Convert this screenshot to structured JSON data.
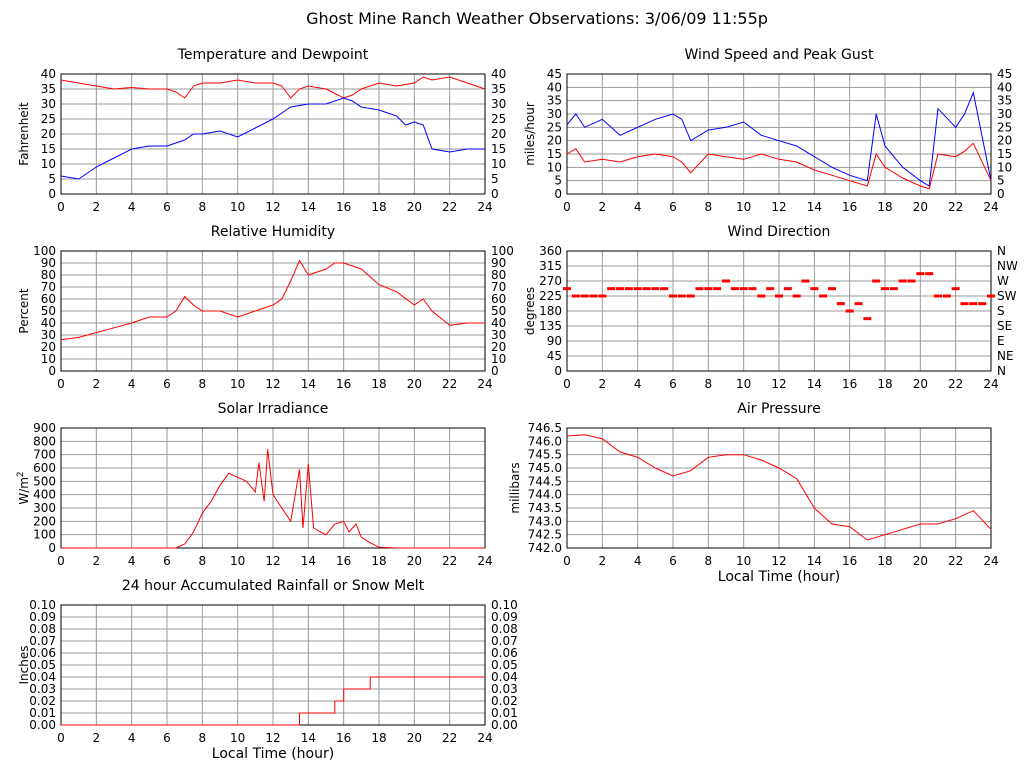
{
  "title": "Ghost Mine Ranch Weather Observations: 3/06/09 11:55p",
  "chart_data": [
    {
      "id": "temp",
      "type": "line",
      "title": "Temperature and Dewpoint",
      "ylabel": "Fahrenheit",
      "xlabel": "",
      "xlim": [
        0,
        24
      ],
      "ylim": [
        0,
        40
      ],
      "xticks": [
        0,
        2,
        4,
        6,
        8,
        10,
        12,
        14,
        16,
        18,
        20,
        22,
        24
      ],
      "yticks": [
        0,
        5,
        10,
        15,
        20,
        25,
        30,
        35,
        40
      ],
      "yticklabels_right": [
        "0",
        "5",
        "10",
        "15",
        "20",
        "25",
        "30",
        "35",
        "40"
      ],
      "grid": true,
      "series": [
        {
          "color": "#ff0000",
          "x": [
            0,
            1,
            2,
            3,
            4,
            5,
            6,
            6.5,
            7,
            7.5,
            8,
            9,
            10,
            11,
            12,
            12.5,
            13,
            13.5,
            14,
            15,
            16,
            16.5,
            17,
            18,
            19,
            20,
            20.5,
            21,
            22,
            23,
            24
          ],
          "y": [
            38,
            37,
            36,
            35,
            35.5,
            35,
            35,
            34,
            32,
            36,
            37,
            37,
            38,
            37,
            37,
            36,
            32,
            35,
            36,
            35,
            32,
            33,
            35,
            37,
            36,
            37,
            39,
            38,
            39,
            37,
            35
          ]
        },
        {
          "color": "#0000ff",
          "x": [
            0,
            1,
            2,
            3,
            4,
            5,
            6,
            7,
            7.5,
            8,
            9,
            10,
            11,
            12,
            13,
            14,
            15,
            16,
            16.5,
            17,
            18,
            19,
            19.5,
            20,
            20.5,
            21,
            22,
            23,
            24
          ],
          "y": [
            6,
            5,
            9,
            12,
            15,
            16,
            16,
            18,
            20,
            20,
            21,
            19,
            22,
            25,
            29,
            30,
            30,
            32,
            31,
            29,
            28,
            26,
            23,
            24,
            23,
            15,
            14,
            15,
            15
          ]
        }
      ]
    },
    {
      "id": "wind",
      "type": "line",
      "title": "Wind Speed and Peak Gust",
      "ylabel": "miles/hour",
      "xlabel": "",
      "xlim": [
        0,
        24
      ],
      "ylim": [
        0,
        45
      ],
      "xticks": [
        0,
        2,
        4,
        6,
        8,
        10,
        12,
        14,
        16,
        18,
        20,
        22,
        24
      ],
      "yticks": [
        0,
        5,
        10,
        15,
        20,
        25,
        30,
        35,
        40,
        45
      ],
      "yticklabels_right": [
        "0",
        "5",
        "10",
        "15",
        "20",
        "25",
        "30",
        "35",
        "40",
        "45"
      ],
      "grid": true,
      "series": [
        {
          "color": "#0000ff",
          "x": [
            0,
            0.5,
            1,
            2,
            3,
            4,
            5,
            6,
            6.5,
            7,
            8,
            9,
            10,
            11,
            12,
            13,
            14,
            15,
            16,
            17,
            17.5,
            18,
            19,
            20,
            20.5,
            21,
            22,
            22.5,
            23,
            24
          ],
          "y": [
            26,
            30,
            25,
            28,
            22,
            25,
            28,
            30,
            28,
            20,
            24,
            25,
            27,
            22,
            20,
            18,
            14,
            10,
            7,
            5,
            30,
            18,
            10,
            5,
            3,
            32,
            25,
            30,
            38,
            5
          ]
        },
        {
          "color": "#ff0000",
          "x": [
            0,
            0.5,
            1,
            2,
            3,
            4,
            5,
            6,
            6.5,
            7,
            8,
            9,
            10,
            11,
            12,
            13,
            14,
            15,
            16,
            17,
            17.5,
            18,
            19,
            20,
            20.5,
            21,
            22,
            22.5,
            23,
            24
          ],
          "y": [
            15,
            17,
            12,
            13,
            12,
            14,
            15,
            14,
            12,
            8,
            15,
            14,
            13,
            15,
            13,
            12,
            9,
            7,
            5,
            3,
            15,
            10,
            6,
            3,
            2,
            15,
            14,
            16,
            19,
            5
          ]
        }
      ]
    },
    {
      "id": "rh",
      "type": "line",
      "title": "Relative Humidity",
      "ylabel": "Percent",
      "xlabel": "",
      "xlim": [
        0,
        24
      ],
      "ylim": [
        0,
        100
      ],
      "xticks": [
        0,
        2,
        4,
        6,
        8,
        10,
        12,
        14,
        16,
        18,
        20,
        22,
        24
      ],
      "yticks": [
        0,
        10,
        20,
        30,
        40,
        50,
        60,
        70,
        80,
        90,
        100
      ],
      "yticklabels_right": [
        "0",
        "10",
        "20",
        "30",
        "40",
        "50",
        "60",
        "70",
        "80",
        "90",
        "100"
      ],
      "grid": true,
      "series": [
        {
          "color": "#ff0000",
          "x": [
            0,
            1,
            2,
            3,
            4,
            5,
            6,
            6.5,
            7,
            7.5,
            8,
            9,
            10,
            11,
            12,
            12.5,
            13,
            13.5,
            14,
            15,
            15.5,
            16,
            17,
            18,
            19,
            20,
            20.5,
            21,
            22,
            23,
            24
          ],
          "y": [
            26,
            28,
            32,
            36,
            40,
            45,
            45,
            50,
            62,
            55,
            50,
            50,
            45,
            50,
            55,
            60,
            75,
            92,
            80,
            85,
            90,
            90,
            85,
            72,
            66,
            55,
            60,
            50,
            38,
            40,
            40
          ]
        }
      ]
    },
    {
      "id": "winddir",
      "type": "scatter",
      "title": "Wind Direction",
      "ylabel": "degrees",
      "xlabel": "",
      "xlim": [
        0,
        24
      ],
      "ylim": [
        0,
        360
      ],
      "xticks": [
        0,
        2,
        4,
        6,
        8,
        10,
        12,
        14,
        16,
        18,
        20,
        22,
        24
      ],
      "yticks": [
        0,
        45,
        90,
        135,
        180,
        225,
        270,
        315,
        360
      ],
      "yticklabels_right": [
        "N",
        "NE",
        "E",
        "SE",
        "S",
        "SW",
        "W",
        "NW",
        "N"
      ],
      "grid": true,
      "series": [
        {
          "color": "#ff0000",
          "x": [
            0,
            0.5,
            1,
            1.5,
            2,
            2.5,
            3,
            3.5,
            4,
            4.5,
            5,
            5.5,
            6,
            6.5,
            7,
            7.5,
            8,
            8.5,
            9,
            9.5,
            10,
            10.5,
            11,
            11.5,
            12,
            12.5,
            13,
            13.5,
            14,
            14.5,
            15,
            15.5,
            16,
            16.5,
            17,
            17.5,
            18,
            18.5,
            19,
            19.5,
            20,
            20.5,
            21,
            21.5,
            22,
            22.5,
            23,
            23.5,
            24
          ],
          "y": [
            247,
            225,
            225,
            225,
            225,
            247,
            247,
            247,
            247,
            247,
            247,
            247,
            225,
            225,
            225,
            247,
            247,
            247,
            270,
            247,
            247,
            247,
            225,
            247,
            225,
            247,
            225,
            270,
            247,
            225,
            247,
            202,
            180,
            202,
            157,
            270,
            247,
            247,
            270,
            270,
            292,
            292,
            225,
            225,
            247,
            202,
            202,
            202,
            225
          ]
        }
      ]
    },
    {
      "id": "solar",
      "type": "line",
      "title": "Solar Irradiance",
      "ylabel": "W/m",
      "ylabel_sup": "2",
      "xlabel": "",
      "xlim": [
        0,
        24
      ],
      "ylim": [
        0,
        900
      ],
      "xticks": [
        0,
        2,
        4,
        6,
        8,
        10,
        12,
        14,
        16,
        18,
        20,
        22,
        24
      ],
      "yticks": [
        0,
        100,
        200,
        300,
        400,
        500,
        600,
        700,
        800,
        900
      ],
      "grid": true,
      "series": [
        {
          "color": "#ff0000",
          "x": [
            0,
            6.5,
            7,
            7.5,
            8,
            8.5,
            9,
            9.5,
            10,
            10.5,
            11,
            11.2,
            11.5,
            11.7,
            12,
            12.5,
            13,
            13.5,
            13.7,
            14,
            14.3,
            14.7,
            15,
            15.5,
            16,
            16.3,
            16.7,
            17,
            17.5,
            18,
            19,
            24
          ],
          "y": [
            0,
            0,
            30,
            120,
            260,
            350,
            470,
            560,
            530,
            500,
            420,
            640,
            350,
            740,
            400,
            300,
            200,
            590,
            150,
            630,
            150,
            120,
            100,
            180,
            200,
            120,
            180,
            80,
            40,
            5,
            0,
            0
          ]
        }
      ]
    },
    {
      "id": "pressure",
      "type": "line",
      "title": "Air Pressure",
      "ylabel": "millibars",
      "xlabel": "Local Time (hour)",
      "xlim": [
        0,
        24
      ],
      "ylim": [
        742.0,
        746.5
      ],
      "xticks": [
        0,
        2,
        4,
        6,
        8,
        10,
        12,
        14,
        16,
        18,
        20,
        22,
        24
      ],
      "yticks": [
        742.0,
        742.5,
        743.0,
        743.5,
        744.0,
        744.5,
        745.0,
        745.5,
        746.0,
        746.5
      ],
      "yticklabels": [
        "742.0",
        "742.5",
        "743.0",
        "743.5",
        "744.0",
        "744.5",
        "745.0",
        "745.5",
        "746.0",
        "746.5"
      ],
      "grid": true,
      "series": [
        {
          "color": "#ff0000",
          "x": [
            0,
            1,
            2,
            3,
            4,
            5,
            6,
            7,
            8,
            9,
            10,
            11,
            12,
            13,
            14,
            15,
            16,
            17,
            18,
            19,
            20,
            21,
            22,
            23,
            24
          ],
          "y": [
            746.2,
            746.25,
            746.1,
            745.6,
            745.4,
            745.0,
            744.7,
            744.9,
            745.4,
            745.5,
            745.5,
            745.3,
            745.0,
            744.6,
            743.5,
            742.9,
            742.8,
            742.3,
            742.5,
            742.7,
            742.9,
            742.9,
            743.1,
            743.4,
            742.7
          ]
        }
      ]
    },
    {
      "id": "rain",
      "type": "line",
      "title": "24 hour Accumulated Rainfall or Snow Melt",
      "ylabel": "Inches",
      "xlabel": "Local Time (hour)",
      "xlim": [
        0,
        24
      ],
      "ylim": [
        0,
        0.1
      ],
      "xticks": [
        0,
        2,
        4,
        6,
        8,
        10,
        12,
        14,
        16,
        18,
        20,
        22,
        24
      ],
      "yticks": [
        0,
        0.01,
        0.02,
        0.03,
        0.04,
        0.05,
        0.06,
        0.07,
        0.08,
        0.09,
        0.1
      ],
      "yticklabels": [
        "0.00",
        "0.01",
        "0.02",
        "0.03",
        "0.04",
        "0.05",
        "0.06",
        "0.07",
        "0.08",
        "0.09",
        "0.10"
      ],
      "yticklabels_right": [
        "0.00",
        "0.01",
        "0.02",
        "0.03",
        "0.04",
        "0.05",
        "0.06",
        "0.07",
        "0.08",
        "0.09",
        "0.10"
      ],
      "grid": true,
      "series": [
        {
          "color": "#ff0000",
          "x": [
            0,
            13.5,
            13.5,
            15.5,
            15.5,
            16,
            16,
            17.5,
            17.5,
            24
          ],
          "y": [
            0,
            0,
            0.01,
            0.01,
            0.02,
            0.02,
            0.03,
            0.03,
            0.04,
            0.04
          ]
        }
      ]
    }
  ]
}
